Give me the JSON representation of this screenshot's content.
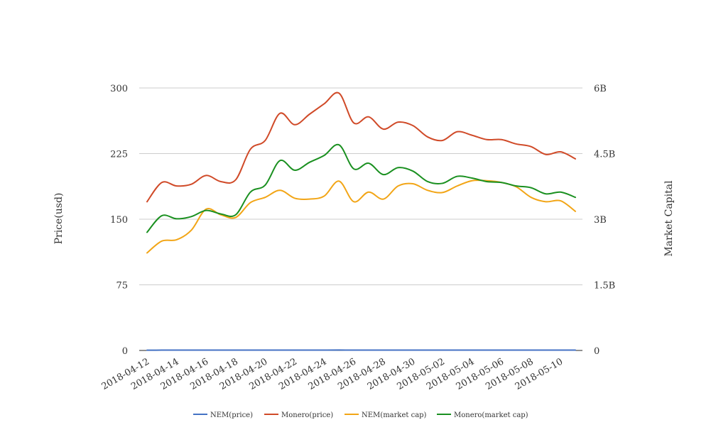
{
  "chart_data": {
    "type": "line",
    "x": [
      "2018-04-12",
      "2018-04-13",
      "2018-04-14",
      "2018-04-15",
      "2018-04-16",
      "2018-04-17",
      "2018-04-18",
      "2018-04-19",
      "2018-04-20",
      "2018-04-21",
      "2018-04-22",
      "2018-04-23",
      "2018-04-24",
      "2018-04-25",
      "2018-04-26",
      "2018-04-27",
      "2018-04-28",
      "2018-04-29",
      "2018-04-30",
      "2018-05-01",
      "2018-05-02",
      "2018-05-03",
      "2018-05-04",
      "2018-05-05",
      "2018-05-06",
      "2018-05-07",
      "2018-05-08",
      "2018-05-09",
      "2018-05-10",
      "2018-05-11"
    ],
    "x_tick_labels": [
      "2018-04-12",
      "2018-04-14",
      "2018-04-16",
      "2018-04-18",
      "2018-04-20",
      "2018-04-22",
      "2018-04-24",
      "2018-04-26",
      "2018-04-28",
      "2018-04-30",
      "2018-05-02",
      "2018-05-04",
      "2018-05-06",
      "2018-05-08",
      "2018-05-10"
    ],
    "ylabel_left": "Price(usd)",
    "ylabel_right": "Market Capital",
    "ylim_left": [
      0,
      300
    ],
    "ylim_right": [
      0,
      6000000000
    ],
    "yticks_left": [
      "0",
      "75",
      "150",
      "225",
      "300"
    ],
    "yticks_right": [
      "0",
      "1.5B",
      "3B",
      "4.5B",
      "6B"
    ],
    "grid": true,
    "legend_position": "bottom",
    "series": [
      {
        "name": "NEM(price)",
        "axis": "left",
        "color": "#4472c4",
        "values": [
          0.35,
          0.36,
          0.36,
          0.36,
          0.38,
          0.37,
          0.36,
          0.4,
          0.41,
          0.44,
          0.42,
          0.42,
          0.43,
          0.46,
          0.41,
          0.42,
          0.4,
          0.44,
          0.44,
          0.42,
          0.41,
          0.43,
          0.44,
          0.43,
          0.42,
          0.41,
          0.4,
          0.39,
          0.39,
          0.37
        ]
      },
      {
        "name": "Monero(price)",
        "axis": "left",
        "color": "#d04a28",
        "values": [
          170,
          192,
          188,
          190,
          200,
          193,
          195,
          230,
          240,
          271,
          258,
          270,
          282,
          294,
          260,
          267,
          253,
          261,
          257,
          244,
          240,
          250,
          246,
          241,
          241,
          236,
          233,
          224,
          227,
          219
        ]
      },
      {
        "name": "NEM(market cap)",
        "axis": "right",
        "color": "#f2a516",
        "values": [
          2230000000,
          2500000000,
          2530000000,
          2750000000,
          3230000000,
          3100000000,
          3040000000,
          3380000000,
          3500000000,
          3660000000,
          3480000000,
          3460000000,
          3530000000,
          3870000000,
          3400000000,
          3620000000,
          3460000000,
          3760000000,
          3810000000,
          3660000000,
          3610000000,
          3760000000,
          3880000000,
          3880000000,
          3840000000,
          3740000000,
          3500000000,
          3400000000,
          3420000000,
          3180000000
        ]
      },
      {
        "name": "Monero(market cap)",
        "axis": "right",
        "color": "#1a9020",
        "values": [
          2700000000,
          3080000000,
          3010000000,
          3060000000,
          3200000000,
          3120000000,
          3100000000,
          3620000000,
          3780000000,
          4340000000,
          4120000000,
          4300000000,
          4460000000,
          4700000000,
          4150000000,
          4280000000,
          4020000000,
          4180000000,
          4100000000,
          3860000000,
          3820000000,
          3980000000,
          3940000000,
          3860000000,
          3840000000,
          3760000000,
          3720000000,
          3580000000,
          3620000000,
          3500000000
        ]
      }
    ]
  }
}
